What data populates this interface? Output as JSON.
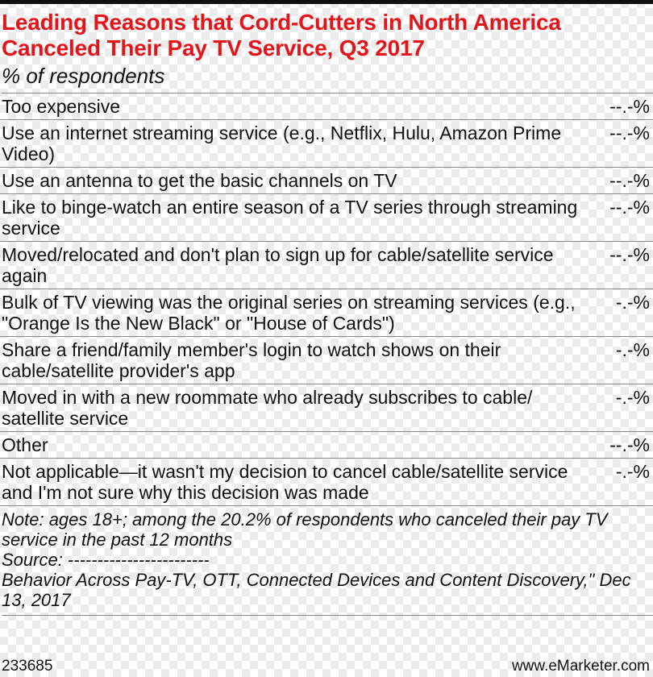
{
  "header": {
    "title": "Leading Reasons that Cord-Cutters in North America Canceled Their Pay TV Service, Q3 2017",
    "subtitle": "% of respondents"
  },
  "table": {
    "rows": [
      [
        "Too expensive",
        "--.-%"
      ],
      [
        "Use an internet streaming service (e.g., Netflix, Hulu, Amazon Prime Video)",
        "--.-%"
      ],
      [
        "Use an antenna to get the basic channels on TV",
        "--.-%"
      ],
      [
        "Like to binge-watch an entire season of a TV series through streaming service",
        "--.-%"
      ],
      [
        "Moved/relocated and don't plan to sign up for cable/satellite service again",
        "--.-%"
      ],
      [
        "Bulk of TV viewing was the original series on streaming services (e.g., \"Orange Is the New Black\" or \"House of Cards\")",
        "-.-%"
      ],
      [
        "Share a friend/family member's login to watch shows on their cable/satellite provider's app",
        "-.-%"
      ],
      [
        "Moved in with a new roommate who already subscribes to cable/ satellite service",
        "-.-%"
      ],
      [
        "Other",
        "--.-%"
      ],
      [
        "Not applicable—it wasn't my decision to cancel cable/satellite service and I'm not sure why this decision was made",
        "-.-%"
      ]
    ]
  },
  "notes": [
    "Note: ages 18+; among the 20.2% of respondents who canceled their pay TV service in the past 12 months",
    "Source: ------------------------",
    "Behavior Across Pay-TV, OTT, Connected Devices and Content Discovery,\" Dec 13, 2017"
  ],
  "footer": {
    "id": "233685",
    "site": "www.eMarketer.com"
  }
}
